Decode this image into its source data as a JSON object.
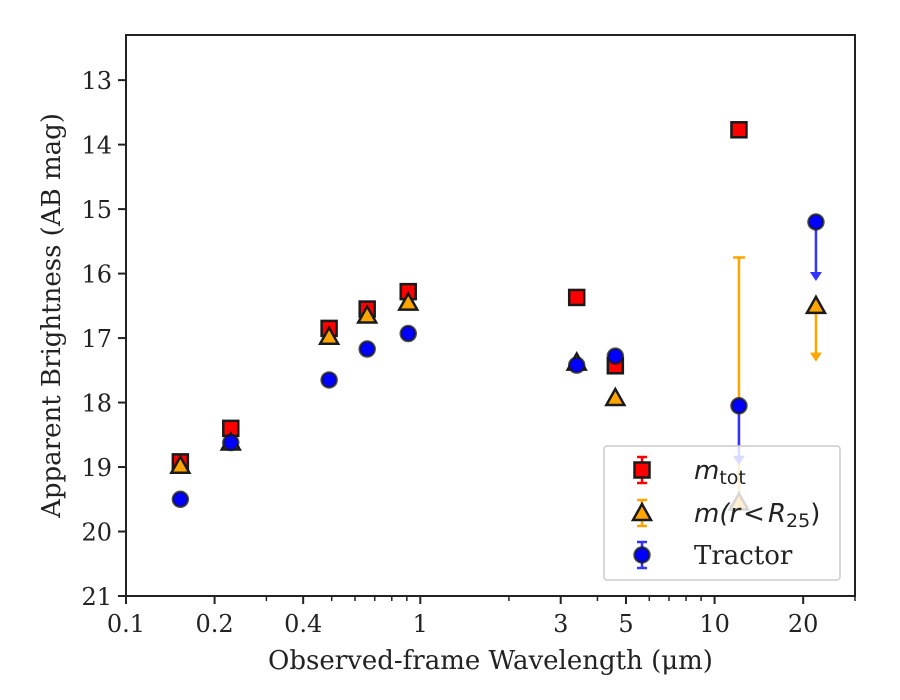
{
  "chart_data": {
    "type": "scatter",
    "xlabel": "Observed-frame Wavelength (μm)",
    "ylabel": "Apparent Brightness (AB mag)",
    "x_scale": "log",
    "xlim": [
      0.1,
      30
    ],
    "ylim": [
      21,
      12.3
    ],
    "y_inverted": true,
    "x_ticks": [
      {
        "value": 0.1,
        "label": "0.1"
      },
      {
        "value": 0.2,
        "label": "0.2"
      },
      {
        "value": 0.4,
        "label": "0.4"
      },
      {
        "value": 1,
        "label": "1"
      },
      {
        "value": 3,
        "label": "3"
      },
      {
        "value": 5,
        "label": "5"
      },
      {
        "value": 10,
        "label": "10"
      },
      {
        "value": 20,
        "label": "20"
      }
    ],
    "y_ticks": [
      {
        "value": 13,
        "label": "13"
      },
      {
        "value": 14,
        "label": "14"
      },
      {
        "value": 15,
        "label": "15"
      },
      {
        "value": 16,
        "label": "16"
      },
      {
        "value": 17,
        "label": "17"
      },
      {
        "value": 18,
        "label": "18"
      },
      {
        "value": 19,
        "label": "19"
      },
      {
        "value": 20,
        "label": "20"
      },
      {
        "value": 21,
        "label": "21"
      }
    ],
    "legend_position": "lower-right",
    "series": [
      {
        "name_base": "m",
        "name_sub": "tot",
        "marker": "square",
        "color": "#ff0000",
        "errcolor": "#ff0000",
        "points": [
          {
            "x": 0.153,
            "y": 18.92
          },
          {
            "x": 0.227,
            "y": 18.4
          },
          {
            "x": 0.49,
            "y": 16.85
          },
          {
            "x": 0.66,
            "y": 16.55
          },
          {
            "x": 0.91,
            "y": 16.28
          },
          {
            "x": 3.4,
            "y": 16.37
          },
          {
            "x": 4.6,
            "y": 17.43
          },
          {
            "x": 12.1,
            "y": 13.77
          }
        ]
      },
      {
        "name_base": "m(r",
        "name_sep": "<",
        "name_r": "R",
        "name_sub": "25",
        "name_close": ")",
        "marker": "triangle",
        "color": "#ffa500",
        "errcolor": "#ffa500",
        "points": [
          {
            "x": 0.153,
            "y": 18.98
          },
          {
            "x": 0.227,
            "y": 18.62
          },
          {
            "x": 0.49,
            "y": 16.98
          },
          {
            "x": 0.66,
            "y": 16.65
          },
          {
            "x": 0.91,
            "y": 16.45
          },
          {
            "x": 3.4,
            "y": 17.38
          },
          {
            "x": 4.6,
            "y": 17.93
          },
          {
            "x": 12.1,
            "y": 19.55,
            "err_up": 3.8,
            "err_down": 0
          },
          {
            "x": 22.1,
            "y": 16.5,
            "upper_limit": true,
            "arrow_to": 17.35
          }
        ]
      },
      {
        "name": "Tractor",
        "marker": "circle",
        "color": "#0000ff",
        "errcolor": "#3333ff",
        "points": [
          {
            "x": 0.153,
            "y": 19.5
          },
          {
            "x": 0.227,
            "y": 18.62
          },
          {
            "x": 0.49,
            "y": 17.65
          },
          {
            "x": 0.66,
            "y": 17.17
          },
          {
            "x": 0.91,
            "y": 16.93
          },
          {
            "x": 3.4,
            "y": 17.42
          },
          {
            "x": 4.6,
            "y": 17.28
          },
          {
            "x": 12.1,
            "y": 18.05,
            "upper_limit": true,
            "arrow_to": 18.95
          },
          {
            "x": 22.1,
            "y": 15.2,
            "upper_limit": true,
            "arrow_to": 16.1
          }
        ]
      }
    ]
  }
}
